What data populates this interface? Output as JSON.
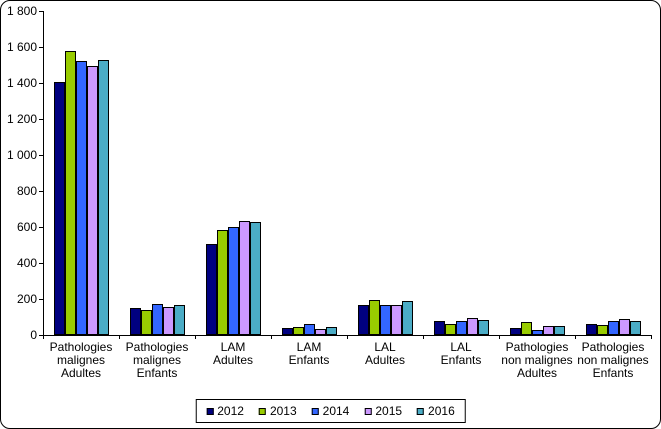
{
  "chart_data": {
    "type": "bar",
    "title": "",
    "xlabel": "",
    "ylabel": "",
    "grid": false,
    "categories": [
      "Pathologies malignes Adultes",
      "Pathologies malignes Enfants",
      "LAM Adultes",
      "LAM Enfants",
      "LAL Adultes",
      "LAL Enfants",
      "Pathologies non malignes Adultes",
      "Pathologies non malignes Enfants"
    ],
    "category_label_lines": [
      [
        "Pathologies",
        "malignes",
        "Adultes"
      ],
      [
        "Pathologies",
        "malignes",
        "Enfants"
      ],
      [
        "LAM",
        "Adultes"
      ],
      [
        "LAM",
        "Enfants"
      ],
      [
        "LAL",
        "Adultes"
      ],
      [
        "LAL",
        "Enfants"
      ],
      [
        "Pathologies",
        "non malignes",
        "Adultes"
      ],
      [
        "Pathologies",
        "non malignes",
        "Enfants"
      ]
    ],
    "series": [
      {
        "name": "2012",
        "color": "#000080",
        "values": [
          1405,
          150,
          505,
          40,
          165,
          75,
          40,
          60
        ]
      },
      {
        "name": "2013",
        "color": "#99CC00",
        "values": [
          1580,
          140,
          585,
          45,
          195,
          60,
          70,
          55
        ]
      },
      {
        "name": "2014",
        "color": "#3366FF",
        "values": [
          1520,
          170,
          600,
          60,
          165,
          75,
          30,
          80
        ]
      },
      {
        "name": "2015",
        "color": "#CC99FF",
        "values": [
          1495,
          155,
          635,
          35,
          165,
          95,
          50,
          90
        ]
      },
      {
        "name": "2016",
        "color": "#4BACC6",
        "values": [
          1525,
          165,
          630,
          45,
          190,
          85,
          50,
          80
        ]
      }
    ],
    "y_axis": {
      "min": 0,
      "max": 1800,
      "step": 200,
      "tick_labels": [
        "0",
        "200",
        "400",
        "600",
        "800",
        "1 000",
        "1 200",
        "1 400",
        "1 600",
        "1 800"
      ]
    },
    "legend": {
      "position": "bottom-center",
      "entries": [
        "2012",
        "2013",
        "2014",
        "2015",
        "2016"
      ]
    }
  }
}
